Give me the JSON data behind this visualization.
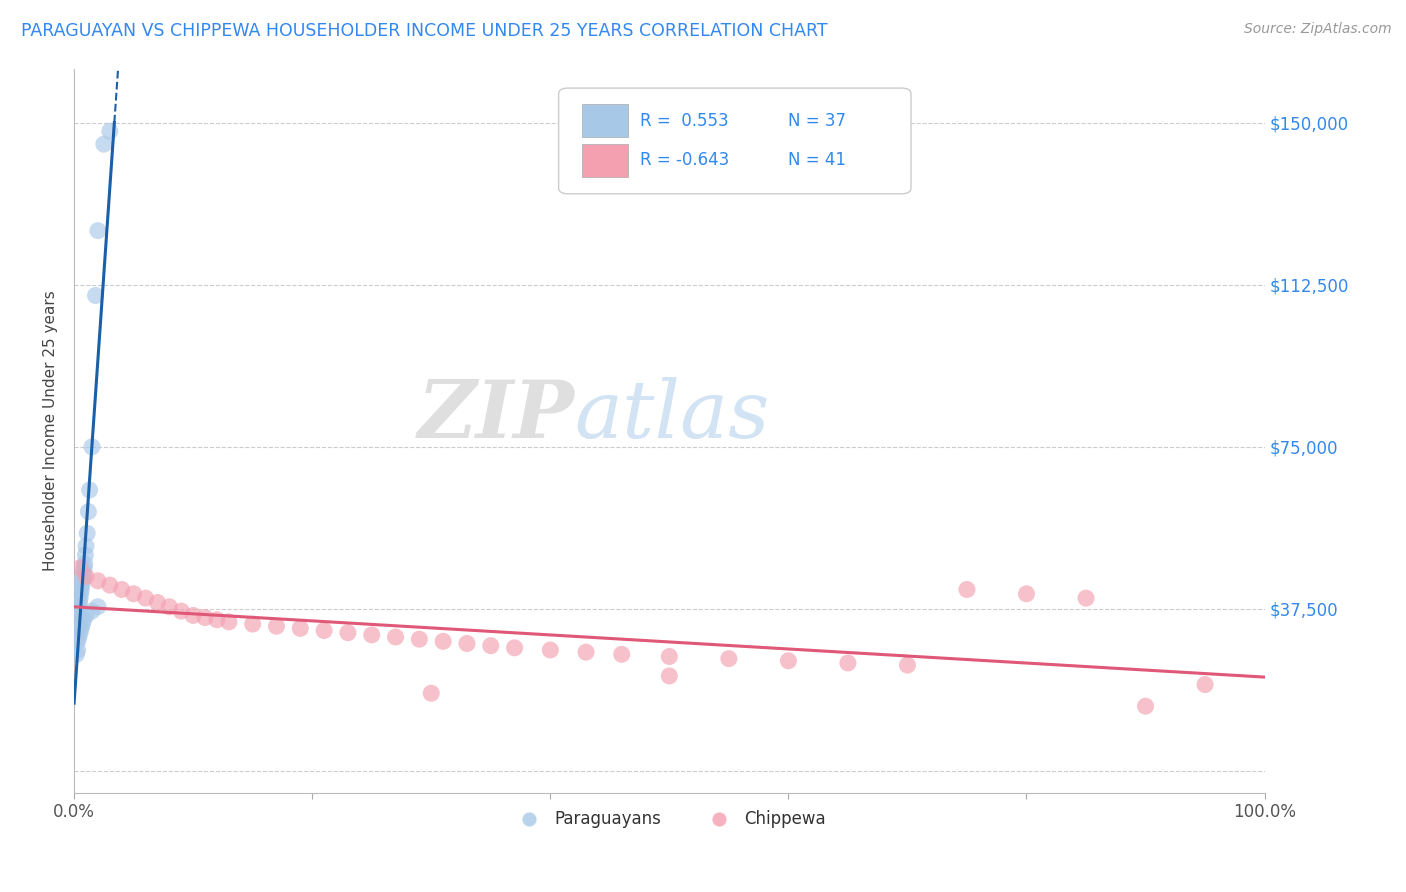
{
  "title": "PARAGUAYAN VS CHIPPEWA HOUSEHOLDER INCOME UNDER 25 YEARS CORRELATION CHART",
  "source": "Source: ZipAtlas.com",
  "ylabel": "Householder Income Under 25 years",
  "xlim": [
    0,
    100
  ],
  "ylim": [
    -5000,
    162500
  ],
  "yticks": [
    0,
    37500,
    75000,
    112500,
    150000
  ],
  "ytick_labels": [
    "",
    "$37,500",
    "$75,000",
    "$112,500",
    "$150,000"
  ],
  "blue_color": "#a8c8e8",
  "pink_color": "#f4a0b0",
  "blue_line_color": "#1a5fa8",
  "pink_line_color": "#e05878",
  "label_blue": "Paraguayans",
  "label_pink": "Chippewa",
  "paraguayan_x": [
    0.15,
    0.2,
    0.25,
    0.3,
    0.35,
    0.4,
    0.45,
    0.5,
    0.55,
    0.6,
    0.65,
    0.7,
    0.75,
    0.8,
    0.85,
    0.9,
    0.95,
    1.0,
    1.1,
    1.2,
    1.3,
    1.5,
    1.8,
    2.0,
    2.5,
    3.0,
    0.3,
    0.4,
    0.5,
    0.6,
    0.7,
    0.8,
    1.0,
    1.5,
    2.0,
    0.2,
    0.3
  ],
  "paraguayan_y": [
    35000,
    33000,
    34000,
    36000,
    37000,
    38000,
    39000,
    40000,
    41000,
    42000,
    43000,
    44000,
    45000,
    46000,
    47000,
    48000,
    50000,
    52000,
    55000,
    60000,
    65000,
    75000,
    110000,
    125000,
    145000,
    148000,
    30000,
    31000,
    32000,
    33000,
    34000,
    35000,
    36000,
    37000,
    38000,
    27000,
    28000
  ],
  "chippewa_x": [
    0.5,
    1.0,
    2.0,
    3.0,
    4.0,
    5.0,
    6.0,
    7.0,
    8.0,
    9.0,
    10.0,
    11.0,
    12.0,
    13.0,
    15.0,
    17.0,
    19.0,
    21.0,
    23.0,
    25.0,
    27.0,
    29.0,
    31.0,
    33.0,
    35.0,
    37.0,
    40.0,
    43.0,
    46.0,
    50.0,
    55.0,
    60.0,
    65.0,
    70.0,
    75.0,
    80.0,
    85.0,
    90.0,
    95.0,
    50.0,
    30.0
  ],
  "chippewa_y": [
    47000,
    45000,
    44000,
    43000,
    42000,
    41000,
    40000,
    39000,
    38000,
    37000,
    36000,
    35500,
    35000,
    34500,
    34000,
    33500,
    33000,
    32500,
    32000,
    31500,
    31000,
    30500,
    30000,
    29500,
    29000,
    28500,
    28000,
    27500,
    27000,
    26500,
    26000,
    25500,
    25000,
    24500,
    42000,
    41000,
    40000,
    15000,
    20000,
    22000,
    18000
  ]
}
